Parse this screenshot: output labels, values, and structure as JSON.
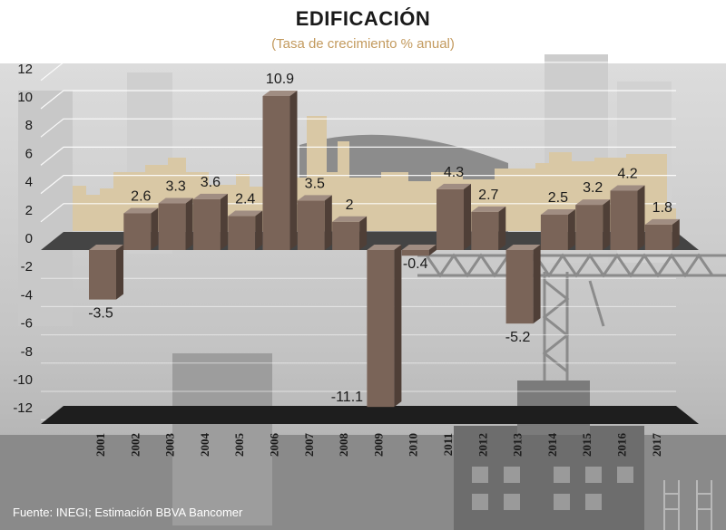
{
  "title": "EDIFICACIÓN",
  "subtitle": "(Tasa de crecimiento % anual)",
  "source": "Fuente: INEGI; Estimación BBVA Bancomer",
  "colors": {
    "bar_front": "#7a6458",
    "bar_top": "#a08d82",
    "bar_side": "#4f3f37",
    "baseline": "#444444",
    "subtitle": "#c39a5e",
    "city_beige": "#d9c8a5",
    "grid": "#ffffff"
  },
  "chart_data": {
    "type": "bar",
    "categories": [
      "2001",
      "2002",
      "2003",
      "2004",
      "2005",
      "2006",
      "2007",
      "2008",
      "2009",
      "2010",
      "2011",
      "2012",
      "2013",
      "2014",
      "2015",
      "2016",
      "2017"
    ],
    "values": [
      -3.5,
      2.6,
      3.3,
      3.6,
      2.4,
      10.9,
      3.5,
      2,
      -11.1,
      -0.4,
      4.3,
      2.7,
      -5.2,
      2.5,
      3.2,
      4.2,
      1.8
    ],
    "data_labels": [
      "-3.5",
      "2.6",
      "3.3",
      "3.6",
      "2.4",
      "10.9",
      "3.5",
      "2",
      "-11.1",
      "-0.4",
      "4.3",
      "2.7",
      "-5.2",
      "2.5",
      "3.2",
      "4.2",
      "1.8"
    ],
    "yticks": [
      12,
      10,
      8,
      6,
      4,
      2,
      0,
      -2,
      -4,
      -6,
      -8,
      -10,
      -12
    ],
    "ylim": [
      -12,
      12
    ],
    "grid": true,
    "legend": "none"
  }
}
